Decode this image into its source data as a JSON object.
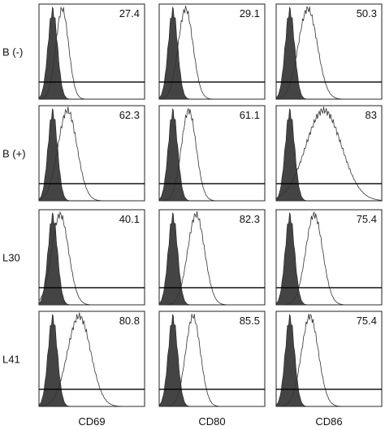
{
  "rows": [
    "B (-)",
    "B (+)",
    "L30",
    "L41"
  ],
  "columns": [
    "CD69",
    "CD80",
    "CD86"
  ],
  "values": [
    [
      27.4,
      29.1,
      50.3
    ],
    [
      62.3,
      61.1,
      83
    ],
    [
      40.1,
      82.3,
      75.4
    ],
    [
      80.8,
      85.5,
      75.4
    ]
  ]
}
